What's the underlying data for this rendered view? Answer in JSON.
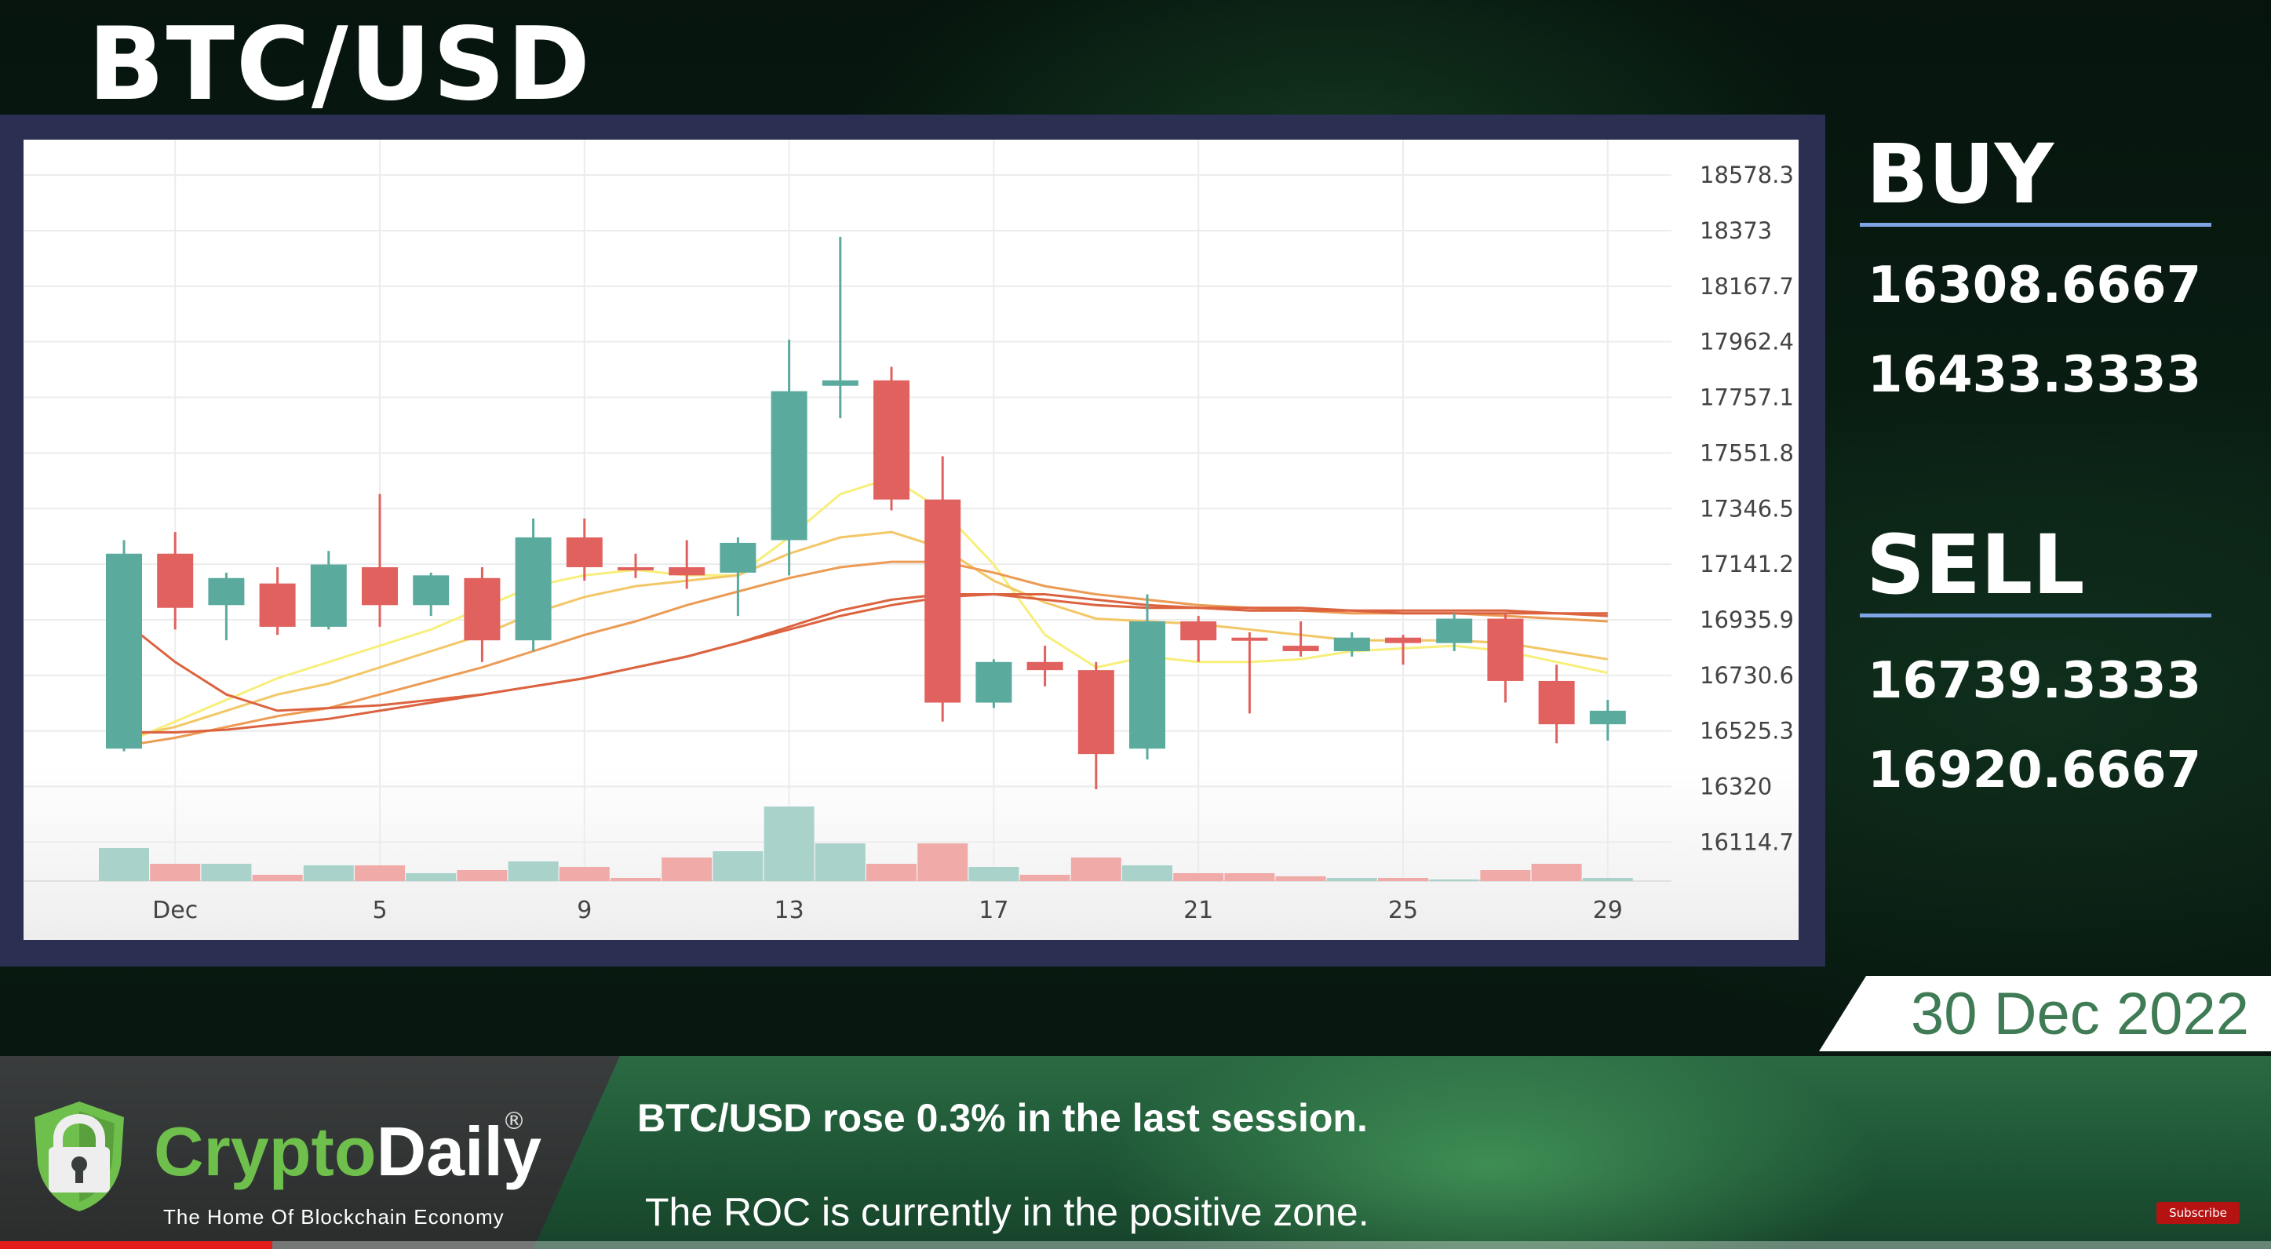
{
  "header": {
    "title": "BTC/USD"
  },
  "side_panel": {
    "buy_label": "BUY",
    "buy_values": [
      "16308.6667",
      "16433.3333"
    ],
    "sell_label": "SELL",
    "sell_values": [
      "16739.3333",
      "16920.6667"
    ]
  },
  "date": "30 Dec 2022",
  "ticker": {
    "line1": "BTC/USD rose 0.3% in the last session.",
    "line2": "The ROC is currently in the positive zone."
  },
  "logo": {
    "name_part1": "Crypto",
    "name_part2": "Daily",
    "registered": "®",
    "tagline": "The Home Of Blockchain Economy"
  },
  "subscribe_label": "Subscribe",
  "video_progress": 0.12,
  "colors": {
    "up": "#5aab9e",
    "down": "#e0615e",
    "ma_yellow": "#f7ef7a",
    "ma_gold": "#f3c766",
    "ma_orange": "#ec9b54",
    "ma_red": "#dc6340",
    "accent_line": "#7fa5e6",
    "date_text": "#3f7b54"
  },
  "chart_data": {
    "type": "candlestick",
    "y_ticks": [
      "18578.3",
      "18373",
      "18167.7",
      "17962.4",
      "17757.1",
      "17551.8",
      "17346.5",
      "17141.2",
      "16935.9",
      "16730.6",
      "16525.3",
      "16320",
      "16114.7"
    ],
    "x_ticks": [
      {
        "label": "Dec",
        "day": 1
      },
      {
        "label": "5",
        "day": 5
      },
      {
        "label": "9",
        "day": 9
      },
      {
        "label": "13",
        "day": 13
      },
      {
        "label": "17",
        "day": 17
      },
      {
        "label": "21",
        "day": 21
      },
      {
        "label": "25",
        "day": 25
      },
      {
        "label": "29",
        "day": 29
      }
    ],
    "ylim": [
      16000,
      18680
    ],
    "candles": [
      {
        "day": 0,
        "open": 16460,
        "high": 17230,
        "low": 16450,
        "close": 17180
      },
      {
        "day": 1,
        "open": 17180,
        "high": 17260,
        "low": 16900,
        "close": 16980
      },
      {
        "day": 2,
        "open": 16990,
        "high": 17110,
        "low": 16860,
        "close": 17090
      },
      {
        "day": 3,
        "open": 17070,
        "high": 17130,
        "low": 16880,
        "close": 16910
      },
      {
        "day": 4,
        "open": 16910,
        "high": 17190,
        "low": 16900,
        "close": 17140
      },
      {
        "day": 5,
        "open": 17130,
        "high": 17400,
        "low": 16910,
        "close": 16990
      },
      {
        "day": 6,
        "open": 16990,
        "high": 17110,
        "low": 16950,
        "close": 17100
      },
      {
        "day": 7,
        "open": 17090,
        "high": 17130,
        "low": 16780,
        "close": 16860
      },
      {
        "day": 8,
        "open": 16860,
        "high": 17310,
        "low": 16820,
        "close": 17240
      },
      {
        "day": 9,
        "open": 17240,
        "high": 17310,
        "low": 17080,
        "close": 17130
      },
      {
        "day": 10,
        "open": 17130,
        "high": 17180,
        "low": 17090,
        "close": 17120
      },
      {
        "day": 11,
        "open": 17130,
        "high": 17230,
        "low": 17050,
        "close": 17100
      },
      {
        "day": 12,
        "open": 17110,
        "high": 17240,
        "low": 16950,
        "close": 17220
      },
      {
        "day": 13,
        "open": 17230,
        "high": 17970,
        "low": 17100,
        "close": 17780
      },
      {
        "day": 14,
        "open": 17800,
        "high": 18350,
        "low": 17680,
        "close": 17820
      },
      {
        "day": 15,
        "open": 17820,
        "high": 17870,
        "low": 17340,
        "close": 17380
      },
      {
        "day": 16,
        "open": 17380,
        "high": 17540,
        "low": 16560,
        "close": 16630
      },
      {
        "day": 17,
        "open": 16630,
        "high": 16790,
        "low": 16610,
        "close": 16780
      },
      {
        "day": 18,
        "open": 16780,
        "high": 16840,
        "low": 16690,
        "close": 16750
      },
      {
        "day": 19,
        "open": 16750,
        "high": 16780,
        "low": 16310,
        "close": 16440
      },
      {
        "day": 20,
        "open": 16460,
        "high": 17030,
        "low": 16420,
        "close": 16930
      },
      {
        "day": 21,
        "open": 16930,
        "high": 16950,
        "low": 16780,
        "close": 16860
      },
      {
        "day": 22,
        "open": 16870,
        "high": 16890,
        "low": 16590,
        "close": 16860
      },
      {
        "day": 23,
        "open": 16840,
        "high": 16930,
        "low": 16800,
        "close": 16820
      },
      {
        "day": 24,
        "open": 16820,
        "high": 16890,
        "low": 16800,
        "close": 16870
      },
      {
        "day": 25,
        "open": 16870,
        "high": 16880,
        "low": 16770,
        "close": 16850
      },
      {
        "day": 26,
        "open": 16850,
        "high": 16960,
        "low": 16820,
        "close": 16940
      },
      {
        "day": 27,
        "open": 16940,
        "high": 16960,
        "low": 16630,
        "close": 16710
      },
      {
        "day": 28,
        "open": 16710,
        "high": 16770,
        "low": 16480,
        "close": 16550
      },
      {
        "day": 29,
        "open": 16550,
        "high": 16640,
        "low": 16490,
        "close": 16600
      }
    ],
    "volume": [
      0.42,
      0.22,
      0.22,
      0.08,
      0.2,
      0.2,
      0.1,
      0.14,
      0.25,
      0.18,
      0.04,
      0.3,
      0.38,
      0.95,
      0.48,
      0.22,
      0.48,
      0.18,
      0.08,
      0.3,
      0.2,
      0.1,
      0.1,
      0.06,
      0.04,
      0.04,
      0.02,
      0.14,
      0.22,
      0.04
    ],
    "moving_averages": [
      {
        "color": "yellow",
        "values": [
          16480,
          16560,
          16640,
          16720,
          16780,
          16840,
          16900,
          16980,
          17060,
          17100,
          17120,
          17100,
          17100,
          17240,
          17400,
          17460,
          17340,
          17140,
          16880,
          16760,
          16800,
          16780,
          16780,
          16790,
          16820,
          16830,
          16840,
          16820,
          16780,
          16740
        ]
      },
      {
        "color": "gold",
        "values": [
          16500,
          16540,
          16600,
          16660,
          16700,
          16760,
          16820,
          16880,
          16960,
          17020,
          17060,
          17080,
          17100,
          17180,
          17240,
          17260,
          17200,
          17080,
          17000,
          16940,
          16930,
          16920,
          16900,
          16880,
          16860,
          16860,
          16860,
          16850,
          16820,
          16790
        ]
      },
      {
        "color": "orange",
        "values": [
          16470,
          16500,
          16540,
          16580,
          16610,
          16660,
          16710,
          16760,
          16820,
          16880,
          16930,
          16990,
          17040,
          17090,
          17130,
          17150,
          17150,
          17110,
          17060,
          17030,
          17010,
          16990,
          16980,
          16970,
          16960,
          16960,
          16960,
          16950,
          16940,
          16930
        ]
      },
      {
        "color": "red",
        "values": [
          16520,
          16520,
          16530,
          16550,
          16570,
          16600,
          16630,
          16660,
          16690,
          16720,
          16760,
          16800,
          16850,
          16900,
          16950,
          16990,
          17020,
          17030,
          17030,
          17010,
          16990,
          16980,
          16980,
          16980,
          16970,
          16970,
          16970,
          16970,
          16960,
          16960
        ]
      },
      {
        "color": "red",
        "values": [
          16930,
          16780,
          16660,
          16600,
          16610,
          16620,
          16640,
          16660,
          16690,
          16720,
          16760,
          16800,
          16850,
          16910,
          16970,
          17010,
          17030,
          17030,
          17010,
          16990,
          16980,
          16980,
          16970,
          16970,
          16970,
          16960,
          16960,
          16960,
          16960,
          16950
        ]
      }
    ]
  }
}
